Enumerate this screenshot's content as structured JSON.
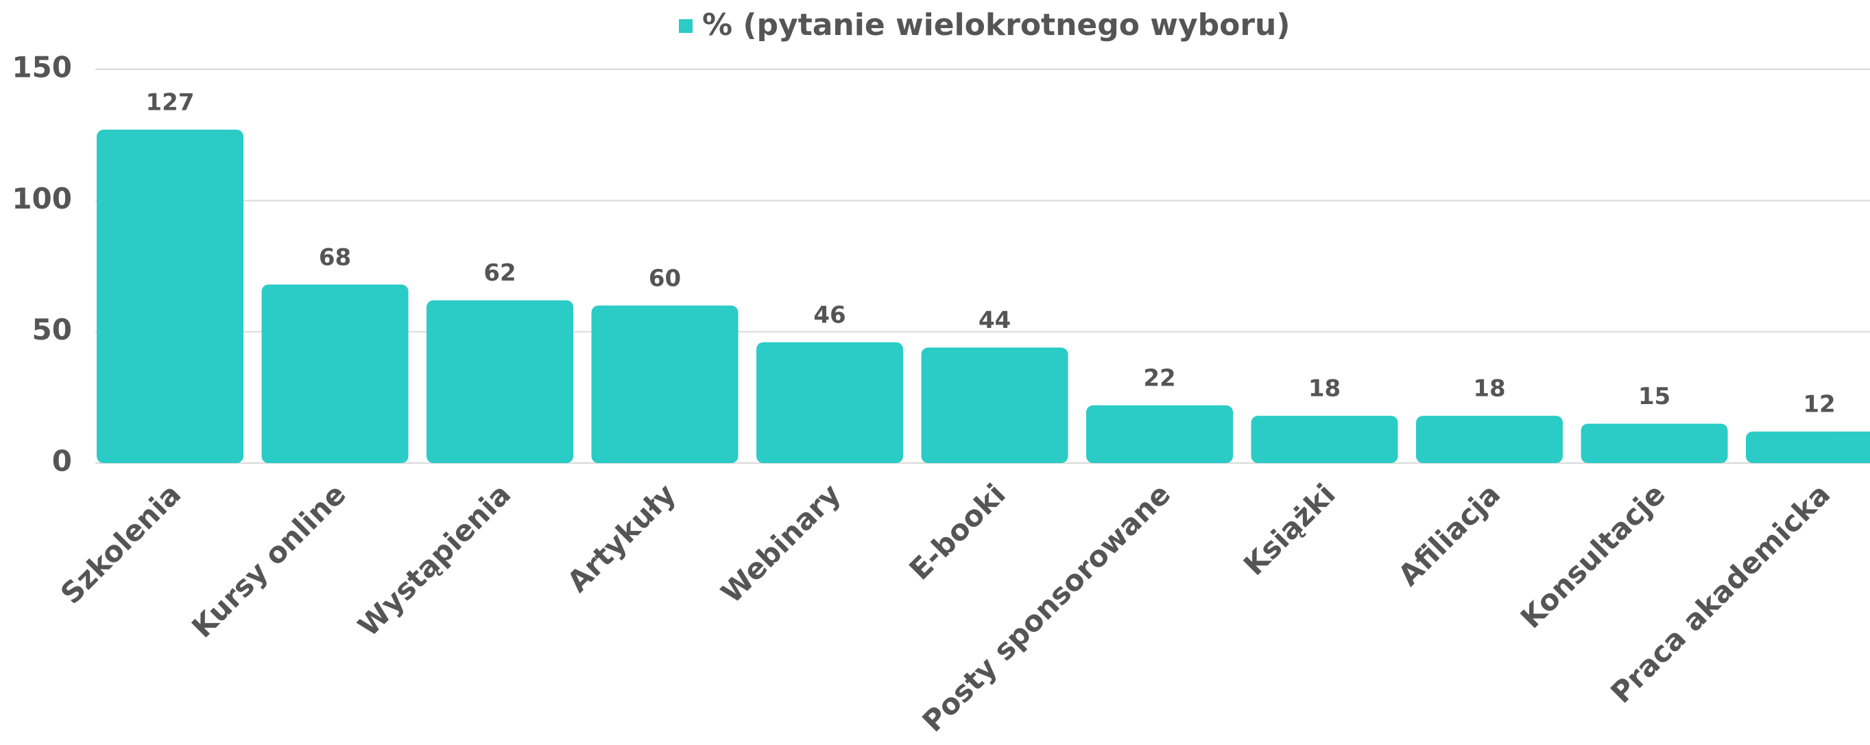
{
  "chart_data": {
    "type": "bar",
    "legend": "% (pytanie wielokrotnego wyboru)",
    "categories": [
      "Szkolenia",
      "Kursy online",
      "Wystąpienia",
      "Artykuły",
      "Webinary",
      "E-booki",
      "Posty sponsorowane",
      "Książki",
      "Afiliacja",
      "Konsultacje",
      "Praca akademicka"
    ],
    "values": [
      127,
      68,
      62,
      60,
      46,
      44,
      22,
      18,
      18,
      15,
      12
    ],
    "color": "#2bcbc6",
    "ylim": [
      0,
      150
    ],
    "yticks": [
      0,
      50,
      100,
      150
    ],
    "grid": true
  }
}
